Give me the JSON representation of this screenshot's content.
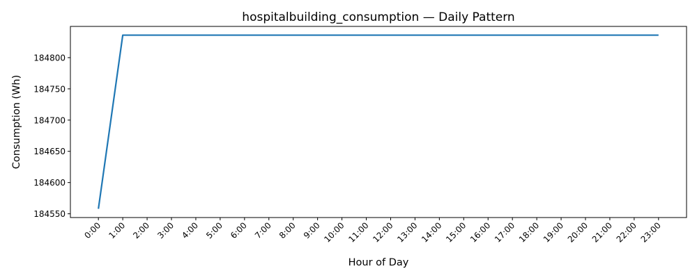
{
  "chart_data": {
    "type": "line",
    "title": "hospitalbuilding_consumption — Daily Pattern",
    "xlabel": "Hour of Day",
    "ylabel": "Consumption (Wh)",
    "categories": [
      "0:00",
      "1:00",
      "2:00",
      "3:00",
      "4:00",
      "5:00",
      "6:00",
      "7:00",
      "8:00",
      "9:00",
      "10:00",
      "11:00",
      "12:00",
      "13:00",
      "14:00",
      "15:00",
      "16:00",
      "17:00",
      "18:00",
      "19:00",
      "20:00",
      "21:00",
      "22:00",
      "23:00"
    ],
    "series": [
      {
        "color": "#1f77b4",
        "values": [
          184558,
          184836,
          184836,
          184836,
          184836,
          184836,
          184836,
          184836,
          184836,
          184836,
          184836,
          184836,
          184836,
          184836,
          184836,
          184836,
          184836,
          184836,
          184836,
          184836,
          184836,
          184836,
          184836,
          184836
        ]
      }
    ],
    "yticks": [
      184550,
      184600,
      184650,
      184700,
      184750,
      184800
    ],
    "ylim": [
      184544,
      184850
    ],
    "grid": false,
    "legend": "none"
  }
}
